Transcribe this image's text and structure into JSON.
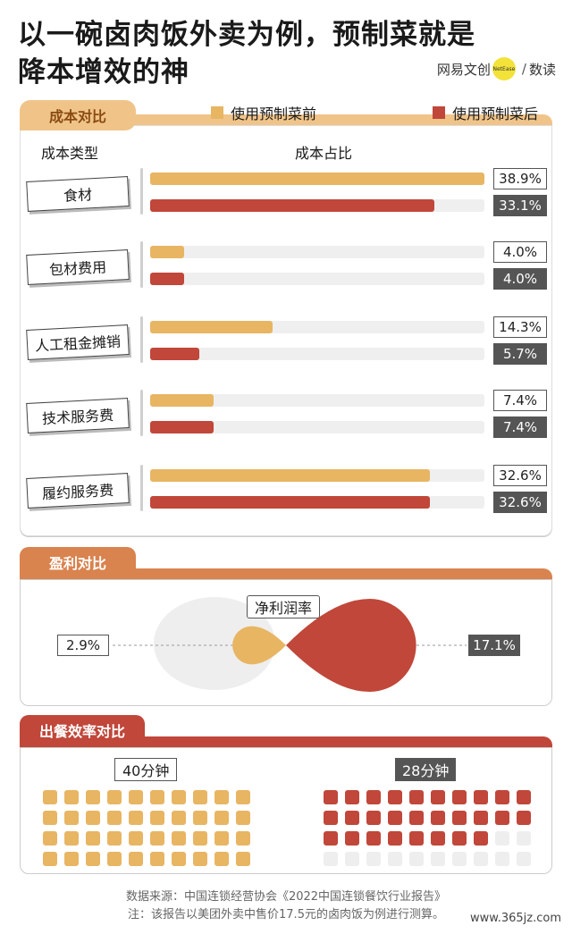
{
  "title_line1": "以一碗卤肉饭外卖为例，预制菜就是",
  "title_line2": "降本增效的神",
  "brand": {
    "part1": "网易文创",
    "logo_text": "NetEase",
    "sep": "/",
    "part2": "数读"
  },
  "colors": {
    "before": "#e8b563",
    "after": "#c0473a",
    "track": "#efefef",
    "empty": "#eeeeee"
  },
  "chart_data": [
    {
      "type": "bar",
      "title": "成本对比",
      "xlabel": "成本占比",
      "ylabel": "成本类型",
      "categories": [
        "食材",
        "包材费用",
        "人工租金摊销",
        "技术服务费",
        "履约服务费"
      ],
      "series": [
        {
          "name": "使用预制菜前",
          "values": [
            38.9,
            4.0,
            14.3,
            7.4,
            32.6
          ],
          "labels": [
            "38.9%",
            "4.0%",
            "14.3%",
            "7.4%",
            "32.6%"
          ]
        },
        {
          "name": "使用预制菜后",
          "values": [
            33.1,
            4.0,
            5.7,
            7.4,
            32.6
          ],
          "labels": [
            "33.1%",
            "4.0%",
            "5.7%",
            "7.4%",
            "32.6%"
          ]
        }
      ],
      "xlim": [
        0,
        38.9
      ]
    },
    {
      "type": "area",
      "title": "盈利对比",
      "center_label": "净利润率",
      "series": [
        {
          "name": "使用预制菜前",
          "value": 2.9,
          "label": "2.9%"
        },
        {
          "name": "使用预制菜后",
          "value": 17.1,
          "label": "17.1%"
        }
      ]
    },
    {
      "type": "table",
      "title": "出餐效率对比",
      "series": [
        {
          "name": "使用预制菜前",
          "minutes": 40,
          "label": "40分钟"
        },
        {
          "name": "使用预制菜后",
          "minutes": 28,
          "label": "28分钟"
        }
      ]
    }
  ],
  "source_line1": "数据来源：中国连锁经营协会《2022中国连锁餐饮行业报告》",
  "source_line2": "注：该报告以美团外卖中售价17.5元的卤肉饭为例进行测算。",
  "watermark": "www.365jz.com"
}
